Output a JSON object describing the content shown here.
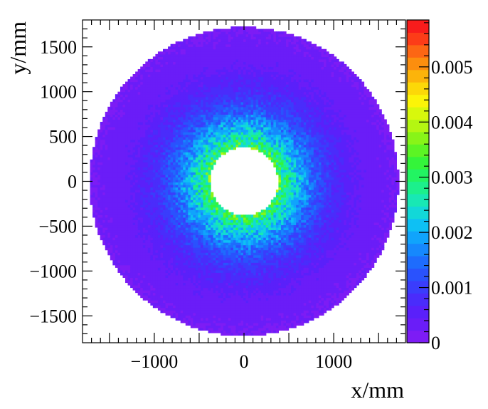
{
  "chart_data": {
    "type": "heatmap",
    "title": "",
    "xlabel": "x/mm",
    "ylabel": "y/mm",
    "xlim": [
      -1800,
      1800
    ],
    "ylim": [
      -1800,
      1800
    ],
    "x_ticks": [
      {
        "value": -1000,
        "label": "−1000"
      },
      {
        "value": 0,
        "label": "0"
      },
      {
        "value": 1000,
        "label": "1000"
      }
    ],
    "y_ticks": [
      {
        "value": 1500,
        "label": "1500"
      },
      {
        "value": 1000,
        "label": "1000"
      },
      {
        "value": 500,
        "label": "500"
      },
      {
        "value": 0,
        "label": "0"
      },
      {
        "value": -500,
        "label": "−500"
      },
      {
        "value": -1000,
        "label": "−1000"
      },
      {
        "value": -1500,
        "label": "−1500"
      }
    ],
    "z_range": [
      0,
      0.00585
    ],
    "z_ticks": [
      {
        "value": 0,
        "label": "0"
      },
      {
        "value": 0.001,
        "label": "0.001"
      },
      {
        "value": 0.002,
        "label": "0.002"
      },
      {
        "value": 0.003,
        "label": "0.003"
      },
      {
        "value": 0.004,
        "label": "0.004"
      },
      {
        "value": 0.005,
        "label": "0.005"
      }
    ],
    "palette": [
      "#7d1cf5",
      "#6a1df8",
      "#5a20fa",
      "#4a2cfb",
      "#3a3dfc",
      "#2a52fd",
      "#1e6cfd",
      "#1688fd",
      "#10a4fc",
      "#0ec0f4",
      "#12d8d8",
      "#18e8b4",
      "#1cf08c",
      "#22f462",
      "#34f43a",
      "#5cf424",
      "#88f418",
      "#b4f612",
      "#d8f80c",
      "#fcf408",
      "#fcd808",
      "#fcb40a",
      "#fc8e0e",
      "#fc6614",
      "#fc3c18",
      "#f81c1c"
    ],
    "distribution": {
      "shape": "annulus",
      "center": [
        0,
        0
      ],
      "inner_radius": 380,
      "outer_radius": 1720,
      "radial_profile": [
        {
          "r": 380,
          "value": 0.0033
        },
        {
          "r": 450,
          "value": 0.0028
        },
        {
          "r": 600,
          "value": 0.0021
        },
        {
          "r": 800,
          "value": 0.0013
        },
        {
          "r": 1000,
          "value": 0.0008
        },
        {
          "r": 1300,
          "value": 0.0004
        },
        {
          "r": 1720,
          "value": 0.0002
        }
      ]
    }
  }
}
